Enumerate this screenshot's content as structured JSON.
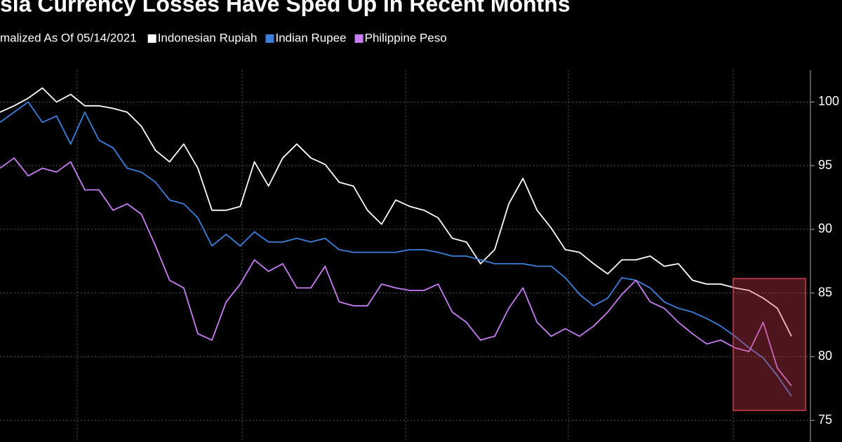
{
  "chart_data": {
    "type": "line",
    "title": "sia Currency Losses Have Sped Up in Recent Months",
    "subtitle": "malized As Of 05/14/2021",
    "series": [
      {
        "name": "Indonesian Rupiah",
        "color": "#ffffff",
        "values": [
          99.2,
          99.7,
          100.3,
          101.1,
          100.0,
          100.6,
          99.7,
          99.7,
          99.5,
          99.2,
          98.1,
          96.2,
          95.3,
          96.7,
          94.8,
          91.5,
          91.5,
          91.8,
          95.3,
          93.4,
          95.6,
          96.7,
          95.6,
          95.1,
          93.7,
          93.4,
          91.5,
          90.4,
          92.3,
          91.8,
          91.5,
          90.9,
          89.3,
          89.0,
          87.3,
          88.4,
          92.0,
          94.0,
          91.5,
          90.1,
          88.4,
          88.2,
          87.3,
          86.5,
          87.6,
          87.6,
          87.9,
          87.1,
          87.3,
          86.0,
          85.7,
          85.7,
          85.4,
          85.2,
          84.6,
          83.8,
          81.6
        ]
      },
      {
        "name": "Indian Rupee",
        "color": "#3d7fd8",
        "values": [
          98.4,
          99.2,
          100.0,
          98.4,
          98.9,
          96.7,
          99.2,
          97.0,
          96.4,
          94.8,
          94.5,
          93.7,
          92.3,
          92.0,
          90.9,
          88.7,
          89.6,
          88.7,
          89.8,
          89.0,
          89.0,
          89.3,
          89.0,
          89.3,
          88.4,
          88.2,
          88.2,
          88.2,
          88.2,
          88.4,
          88.4,
          88.2,
          87.9,
          87.9,
          87.6,
          87.3,
          87.3,
          87.3,
          87.1,
          87.1,
          86.2,
          84.9,
          84.0,
          84.6,
          86.2,
          86.0,
          85.4,
          84.3,
          83.8,
          83.5,
          83.0,
          82.4,
          81.6,
          80.7,
          79.9,
          78.5,
          76.9
        ]
      },
      {
        "name": "Philippine Peso",
        "color": "#c77ef0",
        "values": [
          94.8,
          95.6,
          94.2,
          94.8,
          94.5,
          95.3,
          93.1,
          93.1,
          91.5,
          92.0,
          91.2,
          88.7,
          86.0,
          85.4,
          81.8,
          81.3,
          84.3,
          85.7,
          87.6,
          86.7,
          87.3,
          85.4,
          85.4,
          87.1,
          84.3,
          84.0,
          84.0,
          85.7,
          85.4,
          85.2,
          85.2,
          85.7,
          83.5,
          82.7,
          81.3,
          81.6,
          83.8,
          85.4,
          82.7,
          81.6,
          82.2,
          81.6,
          82.4,
          83.5,
          84.9,
          86.0,
          84.3,
          83.8,
          82.7,
          81.8,
          81.0,
          81.3,
          80.7,
          80.4,
          82.7,
          79.1,
          77.7
        ]
      }
    ],
    "ylim": [
      73.3,
      102.5
    ],
    "yticks": [
      75,
      80,
      85,
      90,
      95,
      100
    ],
    "grid": true
  }
}
